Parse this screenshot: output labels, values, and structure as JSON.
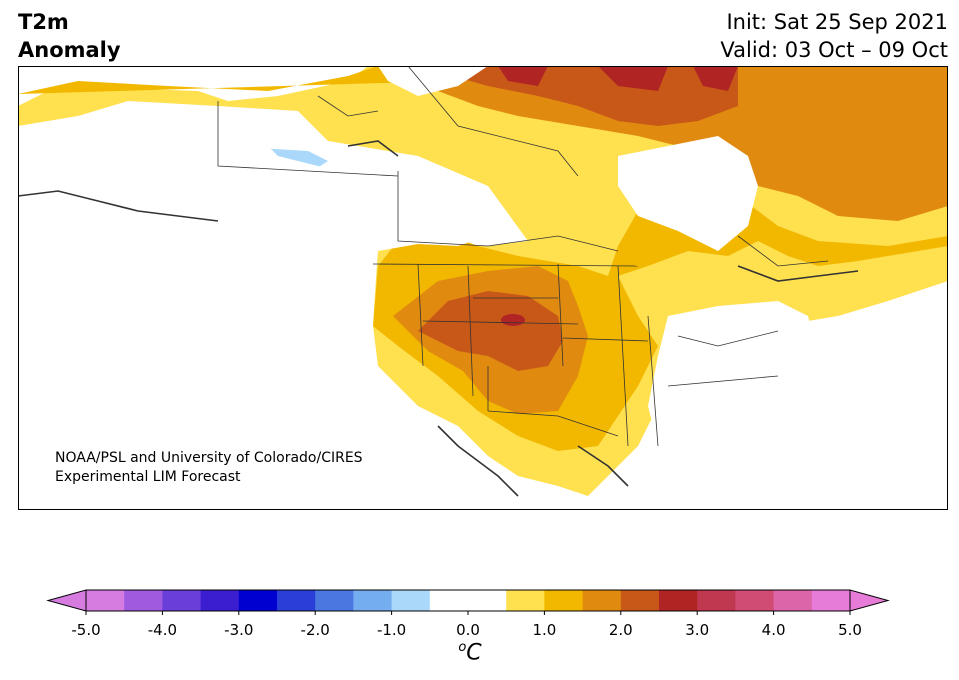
{
  "header": {
    "variable": "T2m",
    "subtitle": "Anomaly",
    "init": "Init: Sat 25 Sep 2021",
    "valid": "Valid: 03 Oct – 09 Oct"
  },
  "credit": {
    "line1": "NOAA/PSL and University of Colorado/CIRES",
    "line2": "Experimental LIM Forecast"
  },
  "colorbar": {
    "unit_symbol": "o",
    "unit_letter": "C",
    "min": -5.0,
    "max": 5.0,
    "tick_labels": [
      "-5.0",
      "-4.0",
      "-3.0",
      "-2.0",
      "-1.0",
      "0.0",
      "1.0",
      "2.0",
      "3.0",
      "4.0",
      "5.0"
    ],
    "tick_values": [
      -5,
      -4,
      -3,
      -2,
      -1,
      0,
      1,
      2,
      3,
      4,
      5
    ],
    "colors": [
      "#d67ce0",
      "#a05ae0",
      "#6a3ed8",
      "#3a1ed0",
      "#0000d0",
      "#2a3ed8",
      "#4a78e0",
      "#74aef0",
      "#aad8fa",
      "#ffffff",
      "#ffffff",
      "#ffe04e",
      "#f2b800",
      "#e08a10",
      "#c85818",
      "#b02424",
      "#c03850",
      "#d04c74",
      "#dc64a8",
      "#e67cd8"
    ]
  },
  "anomaly_colors": {
    "cool": "#aad8fa",
    "band1": "#ffe04e",
    "band2": "#f2b800",
    "band3": "#e08a10",
    "band4": "#c85818",
    "band5": "#b02424"
  }
}
